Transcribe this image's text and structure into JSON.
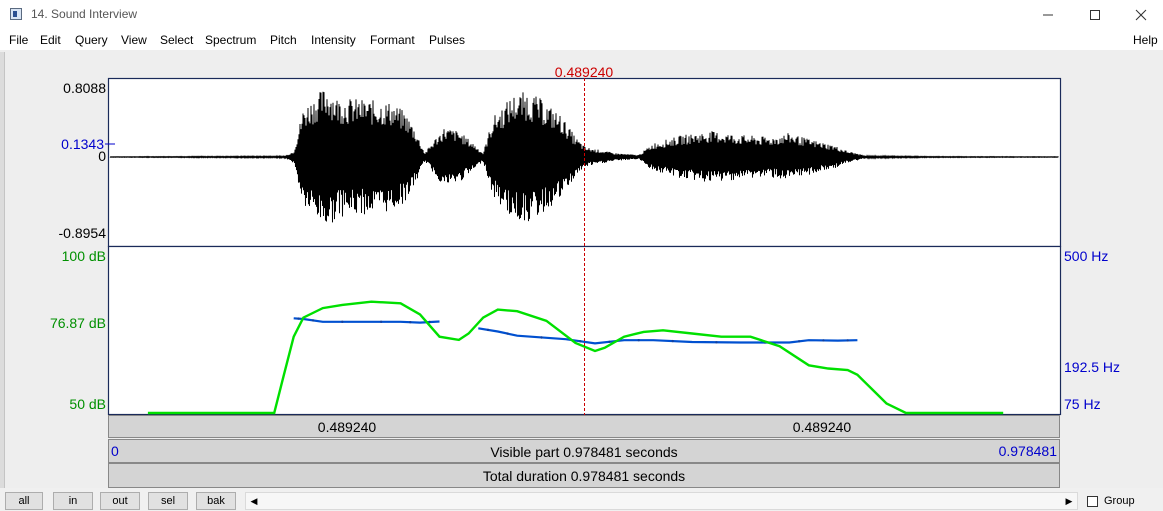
{
  "window": {
    "title": "14. Sound Interview",
    "minimize_icon": "minimize-icon",
    "maximize_icon": "maximize-icon",
    "close_icon": "close-icon"
  },
  "menu": {
    "items": [
      "File",
      "Edit",
      "Query",
      "View",
      "Select",
      "Spectrum",
      "Pitch",
      "Intensity",
      "Formant",
      "Pulses"
    ],
    "help": "Help"
  },
  "cursor": {
    "time_label": "0.489240"
  },
  "waveform": {
    "ymax_label": "0.8088",
    "ymarker_label": "0.1343",
    "zero_label": "0",
    "ymin_label": "-0.8954"
  },
  "analysis": {
    "intensity_top_label": "100 dB",
    "intensity_mid_label": "76.87 dB",
    "intensity_bottom_label": "50 dB",
    "pitch_top_label": "500 Hz",
    "pitch_mid_label": "192.5 Hz",
    "pitch_bottom_label": "75 Hz"
  },
  "bars": {
    "left_segment": "0.489240",
    "right_segment": "0.489240",
    "visible_start": "0",
    "visible_label": "Visible part 0.978481 seconds",
    "visible_end": "0.978481",
    "total_label": "Total duration 0.978481 seconds"
  },
  "buttons": {
    "all": "all",
    "in": "in",
    "out": "out",
    "sel": "sel",
    "bak": "bak"
  },
  "group": {
    "label": "Group",
    "checked": false
  },
  "colors": {
    "cursor": "#cc0000",
    "intensity": "#00e000",
    "pitch": "#0050d0",
    "axis_blue": "#0000cc",
    "axis_green": "#009000"
  },
  "chart_data": [
    {
      "type": "line",
      "name": "intensity",
      "x_range": [
        0,
        0.978481
      ],
      "ylim": [
        50,
        100
      ],
      "x": [
        0.04,
        0.17,
        0.18,
        0.19,
        0.2,
        0.22,
        0.24,
        0.27,
        0.3,
        0.32,
        0.34,
        0.35,
        0.36,
        0.37,
        0.385,
        0.4,
        0.42,
        0.45,
        0.48,
        0.5,
        0.51,
        0.53,
        0.55,
        0.57,
        0.6,
        0.63,
        0.66,
        0.69,
        0.72,
        0.74,
        0.76,
        0.77,
        0.79,
        0.8,
        0.82,
        0.85,
        0.87,
        0.89,
        0.92
      ],
      "values": [
        50,
        50,
        62,
        74,
        80,
        83,
        84,
        85,
        84.5,
        81,
        74,
        73.5,
        73,
        75,
        80,
        82.5,
        82,
        79,
        72,
        69.5,
        70.5,
        74,
        75.5,
        76,
        75,
        74,
        74,
        71,
        65,
        64,
        63.5,
        62,
        56,
        53,
        50,
        50,
        50,
        50,
        50
      ]
    },
    {
      "type": "line",
      "name": "pitch",
      "ylim_hz": [
        75,
        500
      ],
      "segments": [
        {
          "x": [
            0.19,
            0.2,
            0.22,
            0.26,
            0.3,
            0.32,
            0.34
          ],
          "values": [
            225,
            223,
            215,
            215,
            215,
            213,
            216
          ]
        },
        {
          "x": [
            0.38,
            0.4,
            0.42,
            0.47,
            0.5,
            0.53,
            0.56,
            0.6,
            0.65,
            0.7,
            0.72,
            0.75,
            0.77
          ],
          "values": [
            198,
            190,
            180,
            172,
            163,
            170,
            170,
            166,
            165,
            165,
            170,
            169,
            170
          ]
        }
      ]
    }
  ]
}
